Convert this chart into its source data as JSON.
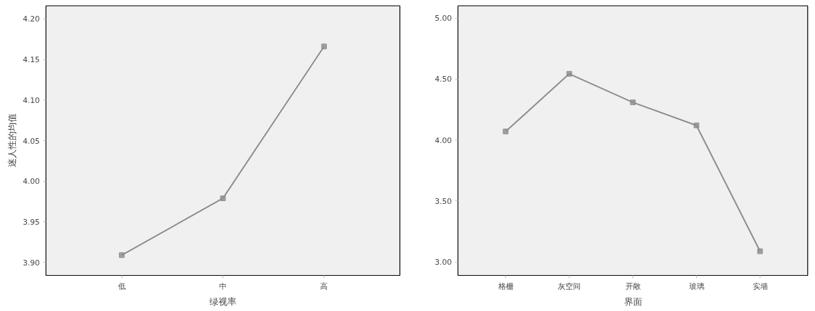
{
  "chart_data": [
    {
      "type": "line",
      "xlabel": "绿视率",
      "ylabel": "迷人性的均值",
      "categories": [
        "低",
        "中",
        "高"
      ],
      "series": [
        {
          "color": "#8c8c8c",
          "values": [
            3.909,
            3.979,
            4.166
          ]
        }
      ],
      "ylim": [
        3.884,
        4.216
      ],
      "yticks": [
        {
          "value": 3.9,
          "label": "3.90"
        },
        {
          "value": 3.95,
          "label": "3.95"
        },
        {
          "value": 4.0,
          "label": "4.00"
        },
        {
          "value": 4.05,
          "label": "4.05"
        },
        {
          "value": 4.1,
          "label": "4.10"
        },
        {
          "value": 4.15,
          "label": "4.15"
        },
        {
          "value": 4.2,
          "label": "4.20"
        }
      ],
      "grid": false,
      "marker": "square",
      "line_style": "solid"
    },
    {
      "type": "line",
      "xlabel": "界面",
      "categories": [
        "格栅",
        "灰空间",
        "开敞",
        "玻璃",
        "实墙"
      ],
      "series": [
        {
          "color": "#8c8c8c",
          "values": [
            4.07,
            4.543,
            4.309,
            4.12,
            3.088
          ]
        }
      ],
      "ylim": [
        2.89,
        5.1
      ],
      "yticks": [
        {
          "value": 3.0,
          "label": "3.00"
        },
        {
          "value": 3.5,
          "label": "3.50"
        },
        {
          "value": 4.0,
          "label": "4.00"
        },
        {
          "value": 4.5,
          "label": "4.50"
        },
        {
          "value": 5.0,
          "label": "5.00"
        }
      ],
      "grid": false,
      "marker": "square",
      "line_style": "solid"
    }
  ]
}
